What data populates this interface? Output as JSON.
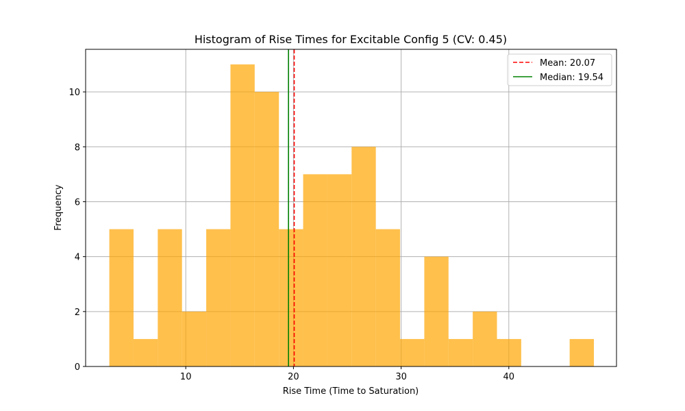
{
  "chart_data": {
    "type": "bar",
    "title": "Histogram of Rise Times for Excitable Config 5 (CV: 0.45)",
    "xlabel": "Rise Time (Time to Saturation)",
    "ylabel": "Frequency",
    "xlim": [
      0.7,
      50.0
    ],
    "ylim": [
      0,
      11.55
    ],
    "x_ticks": [
      10,
      20,
      30,
      40
    ],
    "y_ticks": [
      0,
      2,
      4,
      6,
      8,
      10
    ],
    "grid": true,
    "bar_color": "#FFA500",
    "bar_opacity": 0.7,
    "bins": [
      {
        "start": 2.9,
        "end": 5.15,
        "count": 5
      },
      {
        "start": 5.15,
        "end": 7.4,
        "count": 1
      },
      {
        "start": 7.4,
        "end": 9.65,
        "count": 5
      },
      {
        "start": 9.65,
        "end": 11.9,
        "count": 2
      },
      {
        "start": 11.9,
        "end": 14.15,
        "count": 5
      },
      {
        "start": 14.15,
        "end": 16.4,
        "count": 11
      },
      {
        "start": 16.4,
        "end": 18.65,
        "count": 10
      },
      {
        "start": 18.65,
        "end": 20.9,
        "count": 5
      },
      {
        "start": 20.9,
        "end": 23.15,
        "count": 7
      },
      {
        "start": 23.15,
        "end": 25.4,
        "count": 7
      },
      {
        "start": 25.4,
        "end": 27.65,
        "count": 8
      },
      {
        "start": 27.65,
        "end": 29.9,
        "count": 5
      },
      {
        "start": 29.9,
        "end": 32.15,
        "count": 1
      },
      {
        "start": 32.15,
        "end": 34.4,
        "count": 4
      },
      {
        "start": 34.4,
        "end": 36.65,
        "count": 1
      },
      {
        "start": 36.65,
        "end": 38.9,
        "count": 2
      },
      {
        "start": 38.9,
        "end": 41.15,
        "count": 1
      },
      {
        "start": 41.15,
        "end": 43.4,
        "count": 0
      },
      {
        "start": 43.4,
        "end": 45.65,
        "count": 0
      },
      {
        "start": 45.65,
        "end": 47.9,
        "count": 1
      }
    ],
    "reference_lines": [
      {
        "name": "mean",
        "value": 20.07,
        "label": "Mean: 20.07",
        "color": "#FF0000",
        "style": "dashed"
      },
      {
        "name": "median",
        "value": 19.54,
        "label": "Median: 19.54",
        "color": "#008000",
        "style": "solid"
      }
    ],
    "legend_position": "top-right"
  }
}
